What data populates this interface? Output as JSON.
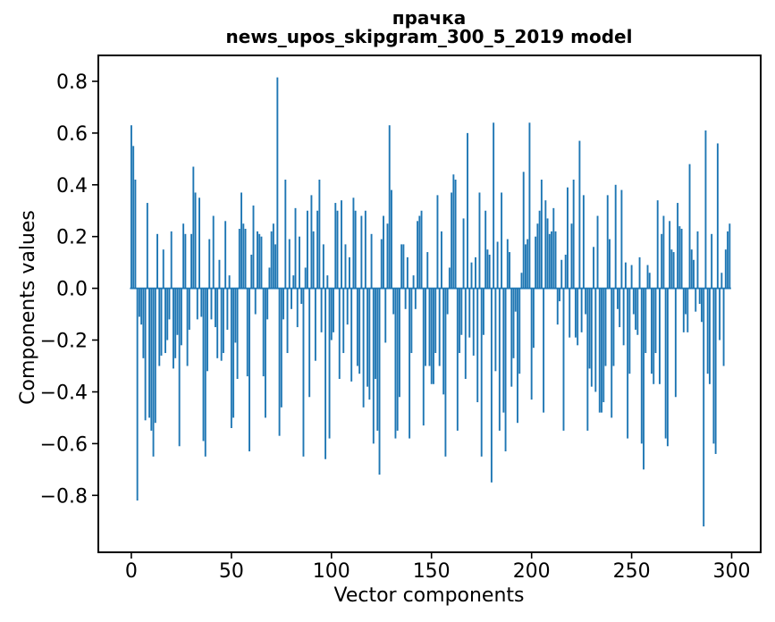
{
  "chart_data": {
    "type": "bar",
    "title": "прачка",
    "subtitle": "news_upos_skipgram_300_5_2019 model",
    "xlabel": "Vector components",
    "ylabel": "Components values",
    "bar_color": "#1f77b4",
    "spine_color": "#000000",
    "n_components": 300,
    "xlim": [
      -16.5,
      314.5
    ],
    "ylim": [
      -1.02,
      0.9
    ],
    "grid": false,
    "legend": "none",
    "xticks": [
      {
        "label": "0",
        "value": 0
      },
      {
        "label": "50",
        "value": 50
      },
      {
        "label": "100",
        "value": 100
      },
      {
        "label": "150",
        "value": 150
      },
      {
        "label": "200",
        "value": 200
      },
      {
        "label": "250",
        "value": 250
      },
      {
        "label": "300",
        "value": 300
      }
    ],
    "yticks": [
      {
        "label": "0.8",
        "value": 0.8
      },
      {
        "label": "0.6",
        "value": 0.6
      },
      {
        "label": "0.4",
        "value": 0.4
      },
      {
        "label": "0.2",
        "value": 0.2
      },
      {
        "label": "0.0",
        "value": 0.0
      },
      {
        "label": "−0.2",
        "value": -0.2
      },
      {
        "label": "−0.4",
        "value": -0.4
      },
      {
        "label": "−0.6",
        "value": -0.6
      },
      {
        "label": "−0.8",
        "value": -0.8
      }
    ],
    "values": [
      0.63,
      0.55,
      0.42,
      -0.82,
      -0.11,
      -0.14,
      -0.27,
      -0.51,
      0.33,
      -0.5,
      -0.55,
      -0.65,
      -0.52,
      0.21,
      -0.3,
      -0.26,
      0.15,
      -0.25,
      -0.2,
      -0.12,
      0.22,
      -0.31,
      -0.27,
      -0.18,
      -0.61,
      -0.22,
      0.25,
      0.21,
      -0.3,
      -0.16,
      0.21,
      0.47,
      0.37,
      -0.12,
      0.35,
      -0.11,
      -0.59,
      -0.65,
      -0.32,
      0.19,
      -0.12,
      0.28,
      -0.15,
      -0.27,
      0.11,
      -0.28,
      -0.25,
      0.26,
      -0.16,
      0.05,
      -0.54,
      -0.5,
      -0.21,
      -0.35,
      0.23,
      0.37,
      0.25,
      0.23,
      -0.34,
      -0.63,
      0.13,
      0.32,
      -0.1,
      0.22,
      0.21,
      0.2,
      -0.34,
      -0.5,
      -0.12,
      0.08,
      0.22,
      0.25,
      0.17,
      0.815,
      -0.57,
      -0.46,
      -0.12,
      0.42,
      -0.25,
      0.19,
      -0.08,
      0.05,
      0.31,
      -0.15,
      0.2,
      -0.06,
      -0.65,
      0.08,
      0.3,
      -0.42,
      0.36,
      0.22,
      -0.28,
      0.3,
      0.42,
      -0.17,
      0.17,
      -0.66,
      0.05,
      -0.58,
      -0.2,
      -0.17,
      0.33,
      0.3,
      -0.35,
      0.34,
      -0.25,
      0.17,
      -0.14,
      0.12,
      -0.36,
      0.35,
      0.3,
      -0.3,
      -0.33,
      0.28,
      -0.46,
      0.3,
      -0.38,
      -0.43,
      0.21,
      -0.6,
      -0.35,
      -0.55,
      -0.72,
      0.19,
      0.28,
      -0.21,
      0.25,
      0.63,
      0.38,
      -0.1,
      -0.58,
      -0.55,
      -0.42,
      0.17,
      0.17,
      -0.08,
      0.12,
      -0.58,
      -0.25,
      0.05,
      -0.08,
      0.26,
      0.28,
      0.3,
      -0.53,
      -0.3,
      0.14,
      -0.3,
      -0.37,
      -0.37,
      -0.25,
      0.36,
      -0.3,
      0.22,
      -0.41,
      -0.65,
      -0.1,
      0.08,
      0.37,
      0.44,
      0.42,
      -0.55,
      -0.25,
      -0.18,
      0.27,
      -0.35,
      0.6,
      -0.19,
      0.1,
      -0.26,
      0.12,
      -0.44,
      0.37,
      -0.65,
      -0.18,
      0.3,
      0.15,
      0.13,
      -0.75,
      0.64,
      -0.32,
      0.18,
      -0.55,
      0.37,
      -0.48,
      -0.63,
      0.19,
      0.14,
      -0.38,
      -0.27,
      -0.09,
      -0.52,
      -0.33,
      0.06,
      0.45,
      0.17,
      0.19,
      0.64,
      -0.43,
      -0.23,
      0.2,
      0.25,
      0.3,
      0.42,
      -0.48,
      0.34,
      0.27,
      0.21,
      0.22,
      0.31,
      0.22,
      -0.14,
      -0.05,
      0.11,
      -0.55,
      0.13,
      0.39,
      -0.19,
      0.25,
      0.42,
      -0.19,
      -0.22,
      0.57,
      -0.17,
      0.36,
      -0.1,
      -0.55,
      -0.31,
      -0.38,
      0.16,
      -0.4,
      0.28,
      -0.48,
      -0.48,
      -0.44,
      -0.3,
      0.36,
      0.19,
      -0.5,
      -0.3,
      0.4,
      -0.08,
      -0.15,
      0.38,
      -0.22,
      0.1,
      -0.58,
      -0.33,
      0.09,
      -0.1,
      -0.16,
      -0.18,
      0.12,
      -0.6,
      -0.7,
      -0.25,
      0.09,
      0.06,
      -0.33,
      -0.37,
      -0.25,
      0.34,
      -0.37,
      0.21,
      0.28,
      -0.58,
      -0.61,
      0.26,
      0.15,
      0.14,
      -0.42,
      0.33,
      0.24,
      0.23,
      -0.17,
      -0.1,
      -0.17,
      0.48,
      0.15,
      0.11,
      -0.09,
      0.22,
      -0.06,
      -0.13,
      -0.92,
      0.61,
      -0.33,
      -0.37,
      0.21,
      -0.6,
      -0.64,
      0.56,
      -0.2,
      0.06,
      -0.3,
      0.15,
      0.22,
      0.25
    ]
  }
}
